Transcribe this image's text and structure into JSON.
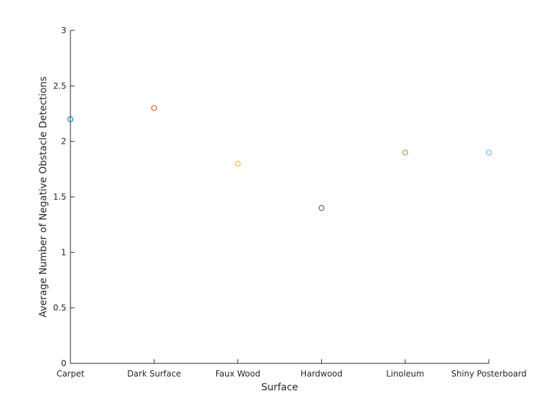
{
  "chart_data": {
    "type": "scatter",
    "title": "",
    "xlabel": "Surface",
    "ylabel": "Average Number of Negative Obstacle Detections",
    "categories": [
      "Carpet",
      "Dark Surface",
      "Faux Wood",
      "Hardwood",
      "Linoleum",
      "Shiny Posterboard"
    ],
    "values": [
      2.2,
      2.3,
      1.8,
      1.4,
      1.9,
      1.9
    ],
    "colors": [
      "#0072BD",
      "#D95319",
      "#EDB120",
      "#7E2F8E",
      "#77AC30",
      "#4DBEEE"
    ],
    "ylim": [
      0,
      3
    ],
    "yticks": [
      0,
      0.5,
      1,
      1.5,
      2,
      2.5,
      3
    ],
    "ytick_labels": [
      "0",
      "0.5",
      "1",
      "1.5",
      "2",
      "2.5",
      "3"
    ],
    "marker": "circle-open",
    "grid": false,
    "legend": "none"
  }
}
